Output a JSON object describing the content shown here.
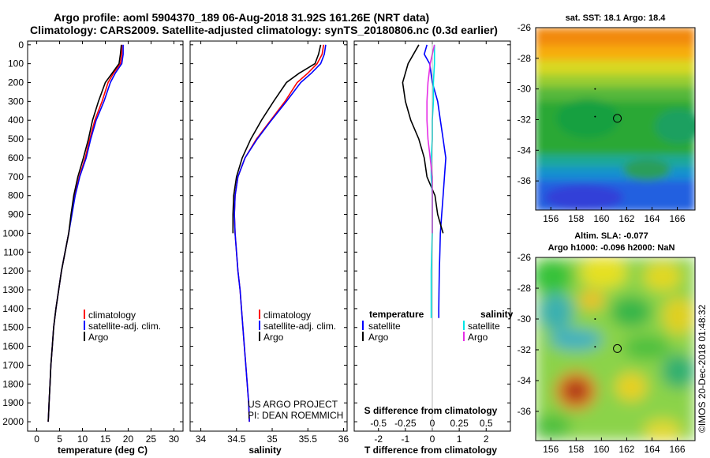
{
  "title": {
    "line1": "Argo profile: aoml 5904370_189 06-Aug-2018 31.92S 161.26E (NRT data)",
    "line2": "Climatology: CARS2009. Satellite-adjusted climatology: synTS_20180806.nc (0.3d earlier)"
  },
  "depth_ticks": [
    "0",
    "100",
    "200",
    "300",
    "400",
    "500",
    "600",
    "700",
    "800",
    "900",
    "1000",
    "1100",
    "1200",
    "1300",
    "1400",
    "1500",
    "1600",
    "1700",
    "1800",
    "1900",
    "2000"
  ],
  "colors": {
    "climatology": "#ff0000",
    "satellite": "#0000ff",
    "argo": "#000000",
    "t_sat": "#0000ff",
    "s_sat": "#00e5e5",
    "s_argo": "#e52ee5"
  },
  "chart_data": [
    {
      "type": "line",
      "xlabel": "temperature (deg C)",
      "xticks": [
        "0",
        "5",
        "10",
        "15",
        "20",
        "25",
        "30"
      ],
      "xlim": [
        -2,
        32
      ],
      "ylim": [
        2050,
        -20
      ],
      "legend": {
        "placement": "bottom-center",
        "entries": [
          "climatology",
          "satellite-adj. clim.",
          "Argo"
        ]
      },
      "series": [
        {
          "name": "climatology",
          "x": [
            18.6,
            18.6,
            18.3,
            16.8,
            15.6,
            14.3,
            12.7,
            11.6,
            10.6,
            9.3,
            8.3,
            7.6,
            7.0,
            6.2,
            5.4,
            4.8,
            4.2,
            3.7,
            3.4,
            3.1,
            2.9,
            2.7,
            2.6,
            2.5
          ],
          "y": [
            0,
            50,
            100,
            150,
            200,
            300,
            400,
            500,
            600,
            700,
            800,
            900,
            1000,
            1100,
            1200,
            1300,
            1400,
            1500,
            1600,
            1700,
            1800,
            1900,
            1950,
            2000
          ]
        },
        {
          "name": "satellite-adj. clim.",
          "x": [
            18.9,
            18.9,
            18.6,
            17.2,
            16.1,
            14.7,
            13.0,
            11.8,
            10.8,
            9.4,
            8.4,
            7.7,
            7.0,
            6.2,
            5.4,
            4.8,
            4.2,
            3.7,
            3.4,
            3.1,
            2.9,
            2.7,
            2.6,
            2.5
          ],
          "y": [
            0,
            50,
            100,
            150,
            200,
            300,
            400,
            500,
            600,
            700,
            800,
            900,
            1000,
            1100,
            1200,
            1300,
            1400,
            1500,
            1600,
            1700,
            1800,
            1900,
            1950,
            2000
          ]
        },
        {
          "name": "Argo",
          "x": [
            18.5,
            18.3,
            18.0,
            16.5,
            15.0,
            13.5,
            12.2,
            11.3,
            10.2,
            9.0,
            8.1,
            7.5,
            7.0,
            6.2,
            5.4,
            4.8,
            4.2,
            3.7,
            3.4,
            3.1,
            2.9,
            2.7,
            2.6,
            2.5
          ],
          "y": [
            0,
            50,
            100,
            150,
            200,
            300,
            400,
            500,
            600,
            700,
            800,
            900,
            1000,
            1100,
            1200,
            1300,
            1400,
            1500,
            1600,
            1700,
            1800,
            1900,
            1950,
            2000
          ]
        }
      ]
    },
    {
      "type": "line",
      "xlabel": "salinity",
      "xticks": [
        "34",
        "34.5",
        "35",
        "35.5",
        "36"
      ],
      "xlim": [
        33.85,
        36.05
      ],
      "ylim": [
        2050,
        -20
      ],
      "legend": {
        "placement": "bottom-center",
        "entries": [
          "climatology",
          "satellite-adj. clim.",
          "Argo"
        ]
      },
      "annotation": [
        "US ARGO PROJECT",
        "PI: DEAN ROEMMICH"
      ],
      "series": [
        {
          "name": "climatology",
          "x": [
            35.72,
            35.7,
            35.63,
            35.5,
            35.35,
            35.18,
            34.98,
            34.78,
            34.62,
            34.52,
            34.48,
            34.47,
            34.48,
            34.5,
            34.52,
            34.55,
            34.57,
            34.59,
            34.61,
            34.63,
            34.65,
            34.67,
            34.68
          ],
          "y": [
            0,
            50,
            100,
            150,
            200,
            300,
            400,
            500,
            600,
            700,
            800,
            900,
            1000,
            1100,
            1200,
            1300,
            1400,
            1500,
            1600,
            1700,
            1800,
            1900,
            2000
          ]
        },
        {
          "name": "satellite-adj. clim.",
          "x": [
            35.75,
            35.73,
            35.68,
            35.55,
            35.4,
            35.2,
            34.99,
            34.79,
            34.62,
            34.52,
            34.48,
            34.47,
            34.48,
            34.5,
            34.52,
            34.55,
            34.57,
            34.59,
            34.61,
            34.63,
            34.65,
            34.67,
            34.68
          ],
          "y": [
            0,
            50,
            100,
            150,
            200,
            300,
            400,
            500,
            600,
            700,
            800,
            900,
            1000,
            1100,
            1200,
            1300,
            1400,
            1500,
            1600,
            1700,
            1800,
            1900,
            2000
          ]
        },
        {
          "name": "Argo",
          "x": [
            35.68,
            35.65,
            35.6,
            35.38,
            35.2,
            35.02,
            34.85,
            34.7,
            34.58,
            34.5,
            34.46,
            34.45,
            34.45
          ],
          "y": [
            0,
            50,
            100,
            150,
            200,
            300,
            400,
            500,
            600,
            700,
            800,
            900,
            1000
          ]
        }
      ]
    },
    {
      "type": "line",
      "xlabel": "T difference from climatology",
      "top_xlabel": "S difference from climatology",
      "xticks": [
        "-2",
        "-1",
        "0",
        "1",
        "2"
      ],
      "top_xticks": [
        "-0.5",
        "-0.25",
        "0",
        "0.25",
        "0.5"
      ],
      "xlim": [
        -2.9,
        2.9
      ],
      "ylim": [
        2050,
        -20
      ],
      "legend": {
        "placement": "bottom",
        "headers": [
          "temperature",
          "salinity"
        ],
        "entries": [
          "satellite",
          "Argo",
          "satellite",
          "Argo"
        ]
      },
      "series": [
        {
          "name": "T satellite",
          "x": [
            -0.2,
            -0.3,
            -0.1,
            0.0,
            0.2,
            0.3,
            0.4,
            0.5,
            0.45,
            0.4,
            0.35,
            0.3,
            0.28,
            0.26,
            0.25,
            0.24,
            0.24
          ],
          "y": [
            0,
            50,
            100,
            200,
            300,
            400,
            500,
            600,
            700,
            800,
            900,
            1000,
            1100,
            1200,
            1300,
            1400,
            1450
          ]
        },
        {
          "name": "T Argo",
          "x": [
            -0.5,
            -0.9,
            -1.1,
            -1.0,
            -0.8,
            -0.5,
            -0.3,
            -0.2,
            0.1,
            0.2,
            0.3,
            0.4
          ],
          "y": [
            0,
            100,
            200,
            300,
            400,
            500,
            600,
            700,
            800,
            900,
            950,
            1000
          ]
        },
        {
          "name": "S satellite",
          "x": [
            0.02,
            0.02,
            0.01,
            0.01,
            0.0,
            0.0,
            -0.01,
            -0.01,
            0.0,
            0.0,
            -0.01,
            -0.01,
            -0.01
          ],
          "y": [
            0,
            100,
            200,
            300,
            400,
            500,
            600,
            700,
            800,
            1000,
            1200,
            1400,
            1450
          ]
        },
        {
          "name": "S Argo",
          "x": [
            0.02,
            -0.02,
            -0.04,
            -0.05,
            -0.05,
            -0.04,
            -0.02,
            0.0,
            0.0,
            0.0
          ],
          "y": [
            0,
            100,
            200,
            300,
            400,
            500,
            600,
            700,
            800,
            1000
          ]
        }
      ]
    }
  ],
  "maps": {
    "sst": {
      "title": "sat. SST: 18.1 Argo: 18.4",
      "yticks": [
        "-26",
        "-28",
        "-30",
        "-32",
        "-34",
        "-36"
      ],
      "xticks": [
        "156",
        "158",
        "160",
        "162",
        "164",
        "166"
      ]
    },
    "sla": {
      "title_line1": "Altim. SLA: -0.077",
      "title_line2": "Argo h1000: -0.096 h2000: NaN",
      "yticks": [
        "-26",
        "-28",
        "-30",
        "-32",
        "-34",
        "-36"
      ],
      "xticks": [
        "156",
        "158",
        "160",
        "162",
        "164",
        "166"
      ]
    },
    "float_position": {
      "lon": 161.26,
      "lat": -31.92
    }
  },
  "side_note": "©IMOS 20-Dec-2018 01:48:32"
}
